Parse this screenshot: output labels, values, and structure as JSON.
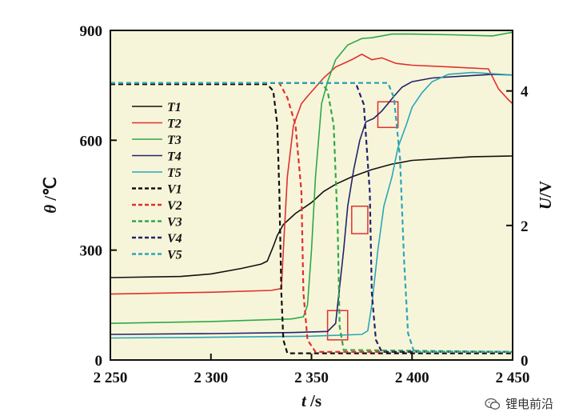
{
  "chart_data": {
    "type": "line",
    "xlabel_var": "t",
    "xlabel_unit": " /s",
    "ylabel_var": "θ",
    "ylabel_unit": " /℃",
    "y2label_var": "U",
    "y2label_unit": "/V",
    "xlim": [
      2250,
      2450
    ],
    "ylim": [
      0,
      900
    ],
    "y2lim": [
      0,
      4.9
    ],
    "x_tick_labels": [
      "2 250",
      "2 300",
      "2 350",
      "2 400",
      "2 450"
    ],
    "x_ticks": [
      2250,
      2300,
      2350,
      2400,
      2450
    ],
    "y_tick_labels": [
      "0",
      "300",
      "600",
      "900"
    ],
    "y_ticks": [
      0,
      300,
      600,
      900
    ],
    "y2_tick_labels": [
      "0",
      "2",
      "4"
    ],
    "y2_ticks": [
      0,
      2,
      4
    ],
    "background": "#f7f5d9",
    "grid": false,
    "legend_position": "left-middle",
    "series": [
      {
        "name": "T1",
        "axis": "left",
        "dash": false,
        "color": "#111111",
        "points": [
          [
            2250,
            225
          ],
          [
            2285,
            228
          ],
          [
            2300,
            235
          ],
          [
            2315,
            250
          ],
          [
            2325,
            262
          ],
          [
            2328,
            270
          ],
          [
            2331,
            310
          ],
          [
            2333,
            340
          ],
          [
            2336,
            370
          ],
          [
            2342,
            400
          ],
          [
            2350,
            430
          ],
          [
            2356,
            460
          ],
          [
            2362,
            480
          ],
          [
            2370,
            500
          ],
          [
            2380,
            520
          ],
          [
            2390,
            535
          ],
          [
            2400,
            545
          ],
          [
            2415,
            550
          ],
          [
            2430,
            555
          ],
          [
            2450,
            557
          ]
        ]
      },
      {
        "name": "T2",
        "axis": "left",
        "dash": false,
        "color": "#e03030",
        "points": [
          [
            2250,
            180
          ],
          [
            2300,
            185
          ],
          [
            2330,
            190
          ],
          [
            2335,
            195
          ],
          [
            2336,
            300
          ],
          [
            2338,
            500
          ],
          [
            2341,
            640
          ],
          [
            2345,
            700
          ],
          [
            2348,
            720
          ],
          [
            2352,
            745
          ],
          [
            2356,
            770
          ],
          [
            2362,
            800
          ],
          [
            2370,
            820
          ],
          [
            2375,
            835
          ],
          [
            2380,
            820
          ],
          [
            2385,
            825
          ],
          [
            2392,
            810
          ],
          [
            2400,
            805
          ],
          [
            2420,
            800
          ],
          [
            2438,
            795
          ],
          [
            2443,
            740
          ],
          [
            2448,
            710
          ],
          [
            2450,
            700
          ]
        ]
      },
      {
        "name": "T3",
        "axis": "left",
        "dash": false,
        "color": "#2ea84a",
        "points": [
          [
            2250,
            100
          ],
          [
            2300,
            105
          ],
          [
            2340,
            112
          ],
          [
            2346,
            118
          ],
          [
            2348,
            150
          ],
          [
            2350,
            300
          ],
          [
            2352,
            500
          ],
          [
            2355,
            700
          ],
          [
            2358,
            760
          ],
          [
            2362,
            820
          ],
          [
            2368,
            860
          ],
          [
            2375,
            878
          ],
          [
            2380,
            880
          ],
          [
            2390,
            890
          ],
          [
            2400,
            890
          ],
          [
            2420,
            888
          ],
          [
            2440,
            885
          ],
          [
            2450,
            895
          ]
        ]
      },
      {
        "name": "T4",
        "axis": "left",
        "dash": false,
        "color": "#22226e",
        "points": [
          [
            2250,
            70
          ],
          [
            2300,
            72
          ],
          [
            2340,
            75
          ],
          [
            2358,
            78
          ],
          [
            2362,
            100
          ],
          [
            2364,
            200
          ],
          [
            2366,
            300
          ],
          [
            2368,
            420
          ],
          [
            2371,
            520
          ],
          [
            2374,
            600
          ],
          [
            2377,
            650
          ],
          [
            2381,
            660
          ],
          [
            2385,
            680
          ],
          [
            2388,
            700
          ],
          [
            2391,
            720
          ],
          [
            2395,
            745
          ],
          [
            2400,
            760
          ],
          [
            2410,
            770
          ],
          [
            2425,
            775
          ],
          [
            2440,
            780
          ],
          [
            2450,
            778
          ]
        ]
      },
      {
        "name": "T5",
        "axis": "left",
        "dash": false,
        "color": "#2aa6b8",
        "points": [
          [
            2250,
            60
          ],
          [
            2300,
            62
          ],
          [
            2350,
            65
          ],
          [
            2375,
            70
          ],
          [
            2378,
            80
          ],
          [
            2380,
            150
          ],
          [
            2383,
            300
          ],
          [
            2386,
            420
          ],
          [
            2390,
            500
          ],
          [
            2393,
            580
          ],
          [
            2397,
            640
          ],
          [
            2400,
            690
          ],
          [
            2405,
            730
          ],
          [
            2410,
            760
          ],
          [
            2418,
            780
          ],
          [
            2430,
            785
          ],
          [
            2445,
            780
          ],
          [
            2450,
            778
          ]
        ]
      },
      {
        "name": "V1",
        "axis": "right",
        "dash": true,
        "color": "#111111",
        "points": [
          [
            2250,
            4.1
          ],
          [
            2328,
            4.1
          ],
          [
            2331,
            4.0
          ],
          [
            2333,
            3.5
          ],
          [
            2334,
            2.5
          ],
          [
            2335,
            1.0
          ],
          [
            2336,
            0.3
          ],
          [
            2338,
            0.1
          ],
          [
            2450,
            0.1
          ]
        ]
      },
      {
        "name": "V2",
        "axis": "right",
        "dash": true,
        "color": "#e03030",
        "points": [
          [
            2250,
            4.12
          ],
          [
            2334,
            4.12
          ],
          [
            2338,
            3.9
          ],
          [
            2342,
            3.5
          ],
          [
            2345,
            2.5
          ],
          [
            2346,
            1.0
          ],
          [
            2348,
            0.3
          ],
          [
            2352,
            0.12
          ],
          [
            2450,
            0.12
          ]
        ]
      },
      {
        "name": "V3",
        "axis": "right",
        "dash": true,
        "color": "#2ea84a",
        "points": [
          [
            2250,
            4.12
          ],
          [
            2355,
            4.12
          ],
          [
            2358,
            4.0
          ],
          [
            2361,
            3.5
          ],
          [
            2363,
            2.0
          ],
          [
            2364,
            0.5
          ],
          [
            2366,
            0.15
          ],
          [
            2450,
            0.12
          ]
        ]
      },
      {
        "name": "V4",
        "axis": "right",
        "dash": true,
        "color": "#22226e",
        "points": [
          [
            2250,
            4.12
          ],
          [
            2372,
            4.12
          ],
          [
            2376,
            3.8
          ],
          [
            2379,
            2.5
          ],
          [
            2380,
            1.0
          ],
          [
            2382,
            0.3
          ],
          [
            2385,
            0.12
          ],
          [
            2450,
            0.12
          ]
        ]
      },
      {
        "name": "V5",
        "axis": "right",
        "dash": true,
        "color": "#2aa6b8",
        "points": [
          [
            2250,
            4.12
          ],
          [
            2388,
            4.12
          ],
          [
            2391,
            3.9
          ],
          [
            2394,
            3.0
          ],
          [
            2396,
            1.5
          ],
          [
            2398,
            0.4
          ],
          [
            2401,
            0.12
          ],
          [
            2450,
            0.12
          ]
        ]
      }
    ],
    "highlight_boxes": [
      {
        "x": [
          2358,
          2368
        ],
        "y": [
          55,
          135
        ]
      },
      {
        "x": [
          2370,
          2378
        ],
        "y": [
          345,
          420
        ]
      },
      {
        "x": [
          2383,
          2393
        ],
        "y": [
          635,
          705
        ]
      }
    ]
  },
  "watermark": {
    "text": "锂电前沿",
    "icon": "wechat-icon"
  }
}
